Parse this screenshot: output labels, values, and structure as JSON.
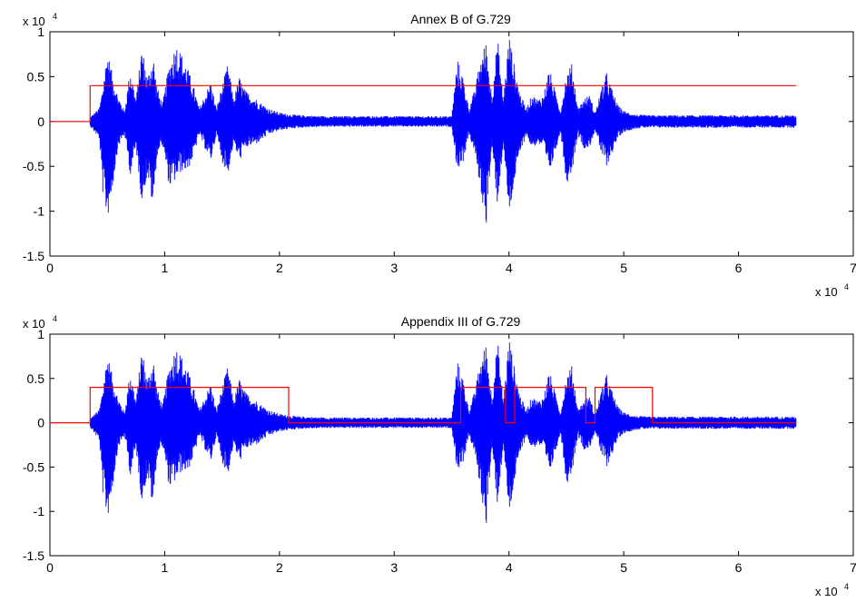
{
  "chart_data": [
    {
      "type": "line",
      "title": "Annex B of G.729",
      "xlim": [
        0,
        70000
      ],
      "ylim": [
        -15000,
        10000
      ],
      "x_ticks": [
        0,
        1,
        2,
        3,
        4,
        5,
        6,
        7
      ],
      "y_ticks": [
        1,
        0.5,
        0,
        -0.5,
        -1,
        -1.5
      ],
      "x_tick_labels": [
        "0",
        "1",
        "2",
        "3",
        "4",
        "5",
        "6",
        "7"
      ],
      "y_tick_labels": [
        "1",
        "0.5",
        "0",
        "-0.5",
        "-1",
        "-1.5"
      ],
      "x_exponent": {
        "base": "x 10",
        "power": "4"
      },
      "y_exponent": {
        "base": "x 10",
        "power": "4"
      },
      "waveform_color": "#0000ff",
      "vad_color": "#ff0000",
      "signal_end": 65000,
      "waveform_envelope": {
        "x": [
          3500,
          4300,
          4600,
          5000,
          5400,
          5900,
          6500,
          7000,
          7500,
          8000,
          8500,
          9000,
          9300,
          9800,
          10400,
          11000,
          11500,
          12000,
          12500,
          13000,
          13500,
          14000,
          14500,
          15000,
          15500,
          16000,
          16500,
          17000,
          18000,
          19000,
          20000,
          21000,
          22000,
          24000,
          30000,
          35000,
          35500,
          36000,
          36500,
          37000,
          37500,
          38000,
          38500,
          39000,
          39500,
          40000,
          40500,
          41000,
          41500,
          42000,
          42500,
          43000,
          43500,
          44000,
          44500,
          45000,
          45500,
          46000,
          46500,
          47000,
          47500,
          48000,
          48500,
          49000,
          49500,
          50000,
          51000,
          52000,
          53000,
          60000,
          65000
        ],
        "upper": [
          500,
          1500,
          4000,
          8000,
          5500,
          3000,
          1200,
          6000,
          2500,
          8500,
          5000,
          7500,
          4000,
          2000,
          6500,
          8800,
          7500,
          6000,
          4000,
          1500,
          3000,
          4500,
          1500,
          4000,
          6500,
          2500,
          5000,
          3500,
          2500,
          1500,
          1000,
          800,
          700,
          600,
          600,
          600,
          7000,
          5000,
          1500,
          3500,
          7000,
          9000,
          3000,
          9500,
          2500,
          9800,
          6000,
          3000,
          1500,
          3000,
          2500,
          3000,
          6000,
          3500,
          1200,
          5500,
          6500,
          1500,
          2500,
          3000,
          1000,
          3500,
          5500,
          3500,
          1800,
          1200,
          800,
          700,
          700,
          700,
          700
        ],
        "lower": [
          -500,
          -2000,
          -8000,
          -11000,
          -8000,
          -3000,
          -1500,
          -6000,
          -3000,
          -9000,
          -6000,
          -10000,
          -4000,
          -2500,
          -7500,
          -6500,
          -5500,
          -5500,
          -4000,
          -1500,
          -3000,
          -4500,
          -1500,
          -4500,
          -6000,
          -2500,
          -4500,
          -3000,
          -2500,
          -1500,
          -1000,
          -800,
          -700,
          -600,
          -600,
          -600,
          -5500,
          -4500,
          -1500,
          -3500,
          -7500,
          -11800,
          -3000,
          -9500,
          -2500,
          -10800,
          -6500,
          -3500,
          -1500,
          -3000,
          -2500,
          -3000,
          -6000,
          -3500,
          -1200,
          -7000,
          -5500,
          -1500,
          -3000,
          -3000,
          -1000,
          -3500,
          -5000,
          -3500,
          -1800,
          -1200,
          -800,
          -700,
          -700,
          -700,
          -700
        ]
      },
      "vad_decision": {
        "x": [
          0,
          3500,
          3500,
          65000
        ],
        "y": [
          0,
          0,
          4000,
          4000
        ]
      }
    },
    {
      "type": "line",
      "title": "Appendix III of G.729",
      "xlim": [
        0,
        70000
      ],
      "ylim": [
        -15000,
        10000
      ],
      "x_ticks": [
        0,
        1,
        2,
        3,
        4,
        5,
        6,
        7
      ],
      "y_ticks": [
        1,
        0.5,
        0,
        -0.5,
        -1,
        -1.5
      ],
      "x_tick_labels": [
        "0",
        "1",
        "2",
        "3",
        "4",
        "5",
        "6",
        "7"
      ],
      "y_tick_labels": [
        "1",
        "0.5",
        "0",
        "-0.5",
        "-1",
        "-1.5"
      ],
      "x_exponent": {
        "base": "x 10",
        "power": "4"
      },
      "y_exponent": {
        "base": "x 10",
        "power": "4"
      },
      "waveform_color": "#0000ff",
      "vad_color": "#ff0000",
      "signal_end": 65000,
      "waveform_envelope": {
        "x": [
          3500,
          4300,
          4600,
          5000,
          5400,
          5900,
          6500,
          7000,
          7500,
          8000,
          8500,
          9000,
          9300,
          9800,
          10400,
          11000,
          11500,
          12000,
          12500,
          13000,
          13500,
          14000,
          14500,
          15000,
          15500,
          16000,
          16500,
          17000,
          18000,
          19000,
          20000,
          21000,
          22000,
          24000,
          30000,
          35000,
          35500,
          36000,
          36500,
          37000,
          37500,
          38000,
          38500,
          39000,
          39500,
          40000,
          40500,
          41000,
          41500,
          42000,
          42500,
          43000,
          43500,
          44000,
          44500,
          45000,
          45500,
          46000,
          46500,
          47000,
          47500,
          48000,
          48500,
          49000,
          49500,
          50000,
          51000,
          52000,
          53000,
          60000,
          65000
        ],
        "upper": [
          500,
          1500,
          4000,
          8000,
          5500,
          3000,
          1200,
          6000,
          2500,
          8500,
          5000,
          7500,
          4000,
          2000,
          6500,
          8800,
          7500,
          6000,
          4000,
          1500,
          3000,
          4500,
          1500,
          4000,
          6500,
          2500,
          5000,
          3500,
          2500,
          1500,
          1000,
          800,
          700,
          600,
          600,
          600,
          7000,
          5000,
          1500,
          3500,
          7000,
          9000,
          3000,
          9500,
          2500,
          9800,
          6000,
          3000,
          1500,
          3000,
          2500,
          3000,
          6000,
          3500,
          1200,
          5500,
          6500,
          1500,
          2500,
          3000,
          1000,
          3500,
          5500,
          3500,
          1800,
          1200,
          800,
          700,
          700,
          700,
          700
        ],
        "lower": [
          -500,
          -2000,
          -8000,
          -11000,
          -8000,
          -3000,
          -1500,
          -6000,
          -3000,
          -9000,
          -6000,
          -10000,
          -4000,
          -2500,
          -7500,
          -6500,
          -5500,
          -5500,
          -4000,
          -1500,
          -3000,
          -4500,
          -1500,
          -4500,
          -6000,
          -2500,
          -4500,
          -3000,
          -2500,
          -1500,
          -1000,
          -800,
          -700,
          -600,
          -600,
          -600,
          -5500,
          -4500,
          -1500,
          -3500,
          -7500,
          -11800,
          -3000,
          -9500,
          -2500,
          -10800,
          -6500,
          -3500,
          -1500,
          -3000,
          -2500,
          -3000,
          -6000,
          -3500,
          -1200,
          -7000,
          -5500,
          -1500,
          -3000,
          -3000,
          -1000,
          -3500,
          -5000,
          -3500,
          -1800,
          -1200,
          -800,
          -700,
          -700,
          -700,
          -700
        ]
      },
      "vad_decision": {
        "x": [
          0,
          3500,
          3500,
          20800,
          20800,
          35800,
          35800,
          39700,
          39700,
          40500,
          40500,
          46700,
          46700,
          47500,
          47500,
          52500,
          52500,
          65000
        ],
        "y": [
          0,
          0,
          4000,
          4000,
          0,
          0,
          4000,
          4000,
          0,
          0,
          4000,
          4000,
          0,
          0,
          4000,
          4000,
          0,
          0
        ]
      }
    }
  ]
}
